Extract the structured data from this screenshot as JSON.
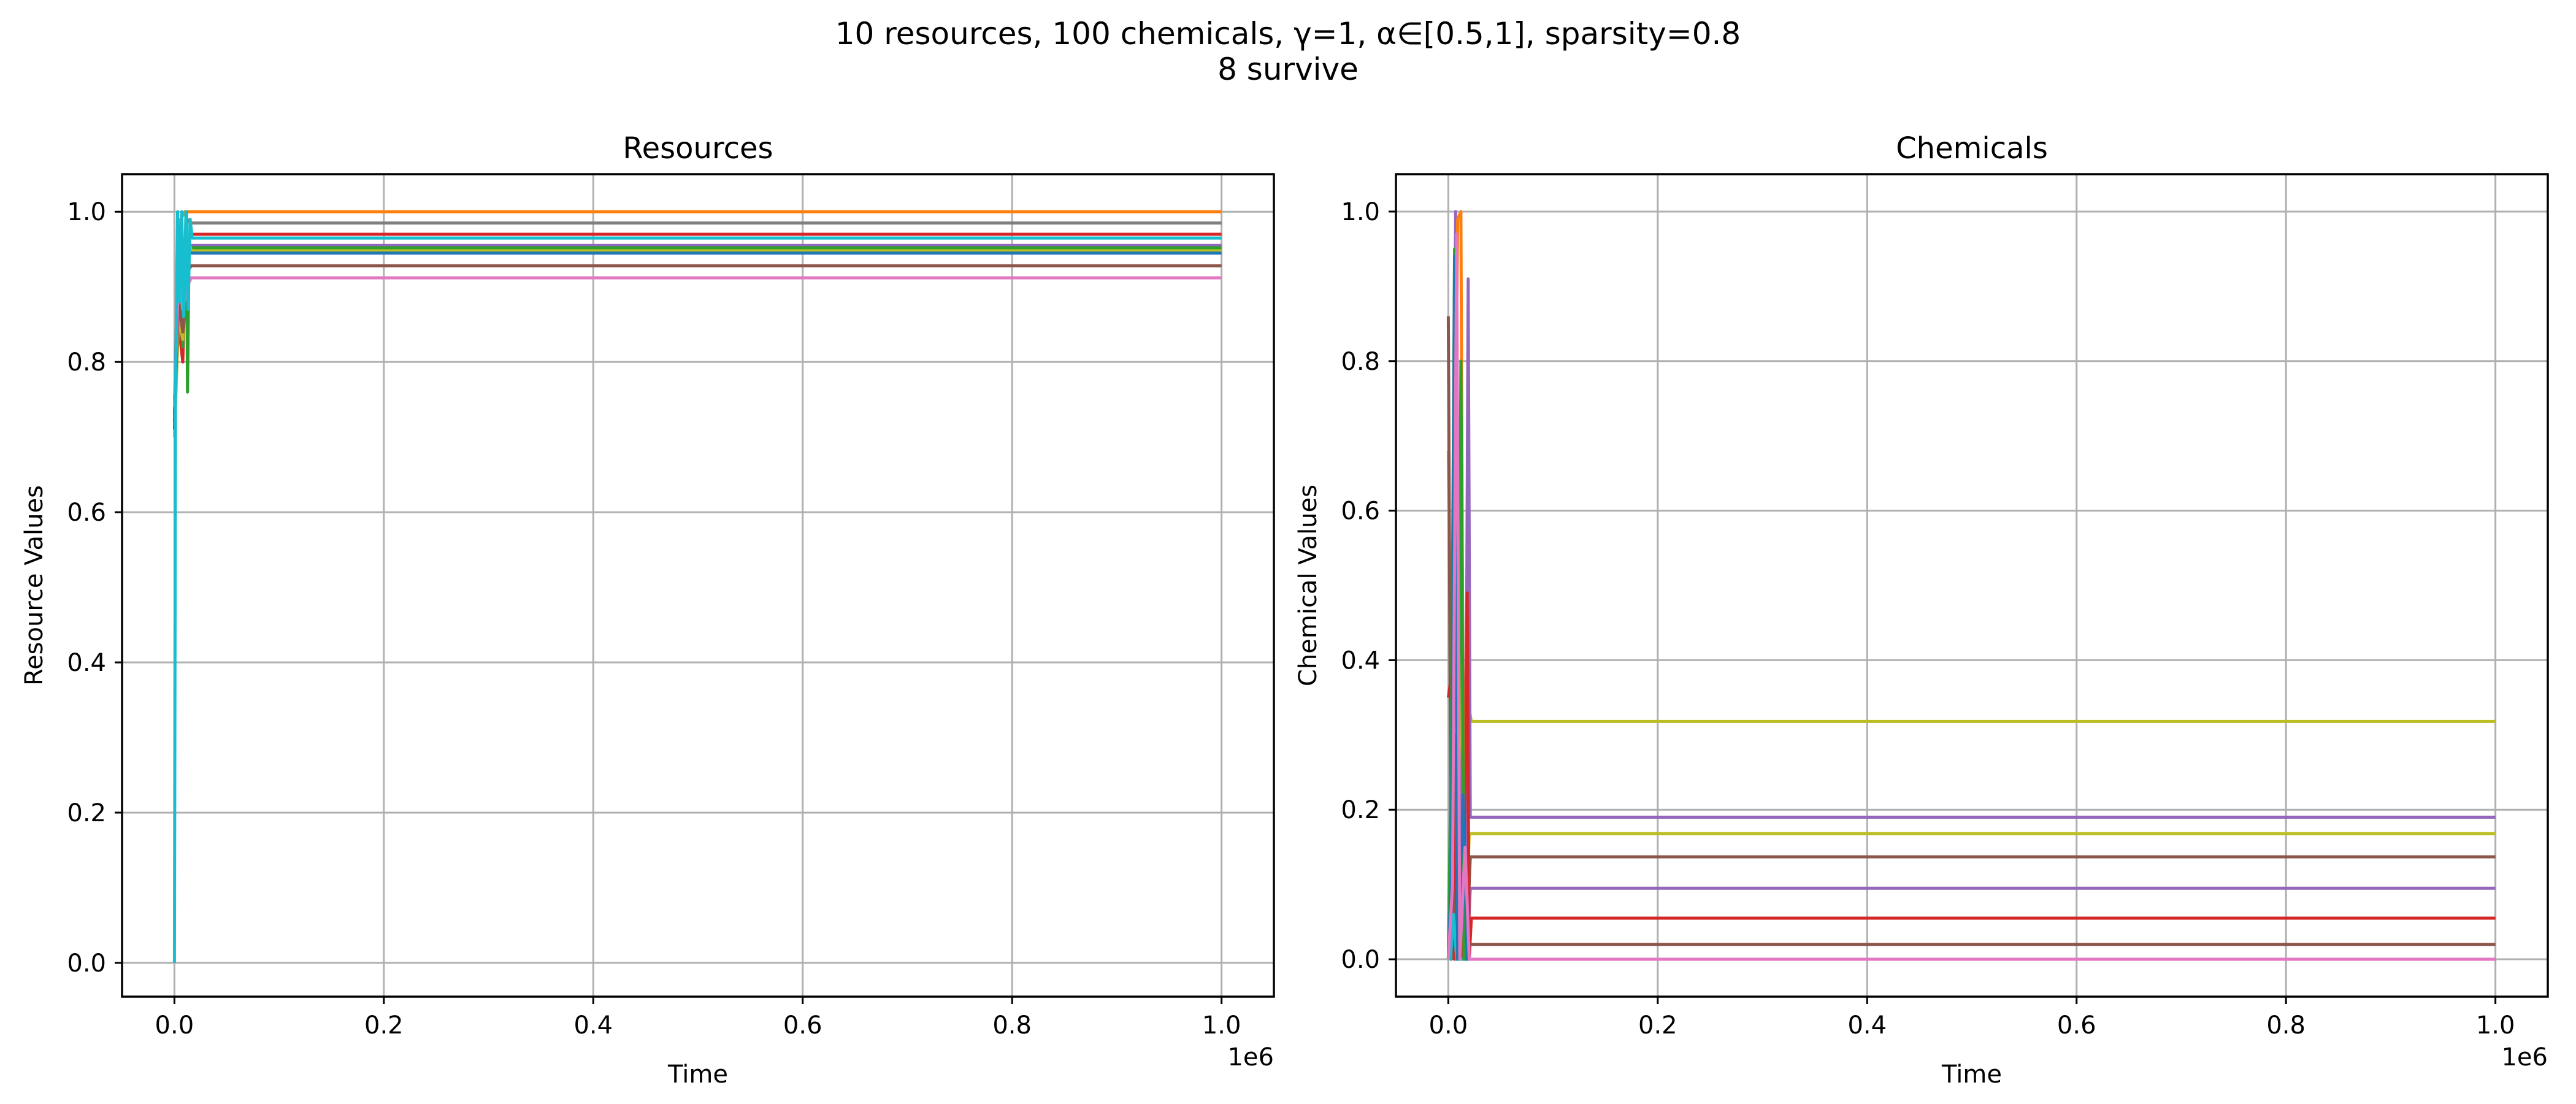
{
  "suptitle": {
    "line1": "10 resources, 100 chemicals, γ=1, α∈[0.5,1], sparsity=0.8",
    "line2": "8 survive"
  },
  "colors": [
    "#1f77b4",
    "#ff7f0e",
    "#2ca02c",
    "#d62728",
    "#9467bd",
    "#8c564b",
    "#e377c2",
    "#7f7f7f",
    "#bcbd22",
    "#17becf"
  ],
  "chart_data": [
    {
      "type": "line",
      "title": "Resources",
      "xlabel": "Time",
      "ylabel": "Resource Values",
      "x_offset_label": "1e6",
      "xlim": [
        -0.05,
        1.05
      ],
      "ylim": [
        -0.045,
        1.05
      ],
      "xticks": [
        0.0,
        0.2,
        0.4,
        0.6,
        0.8,
        1.0
      ],
      "xtick_labels": [
        "0.0",
        "0.2",
        "0.4",
        "0.6",
        "0.8",
        "1.0"
      ],
      "yticks": [
        0.0,
        0.2,
        0.4,
        0.6,
        0.8,
        1.0
      ],
      "ytick_labels": [
        "0.0",
        "0.2",
        "0.4",
        "0.6",
        "0.8",
        "1.0"
      ],
      "grid": true,
      "x_units": "1e6",
      "series": [
        {
          "color": "#ff7f0e",
          "final": 1.0,
          "transient": [
            [
              0,
              0.72
            ],
            [
              0.003,
              0.9
            ],
            [
              0.006,
              0.99
            ],
            [
              0.01,
              1.0
            ],
            [
              0.015,
              1.0
            ]
          ]
        },
        {
          "color": "#7f7f7f",
          "final": 0.985,
          "transient": [
            [
              0,
              0.74
            ],
            [
              0.004,
              0.98
            ],
            [
              0.008,
              0.88
            ],
            [
              0.012,
              0.99
            ],
            [
              0.016,
              0.985
            ]
          ]
        },
        {
          "color": "#d62728",
          "final": 0.97,
          "transient": [
            [
              0,
              0.75
            ],
            [
              0.004,
              0.85
            ],
            [
              0.008,
              0.8
            ],
            [
              0.011,
              0.95
            ],
            [
              0.016,
              0.97
            ]
          ]
        },
        {
          "color": "#9467bd",
          "final": 0.955,
          "transient": [
            [
              0,
              0.73
            ],
            [
              0.004,
              0.97
            ],
            [
              0.008,
              0.86
            ],
            [
              0.012,
              0.96
            ],
            [
              0.016,
              0.955
            ]
          ]
        },
        {
          "color": "#2ca02c",
          "final": 0.952,
          "transient": [
            [
              0,
              0.72
            ],
            [
              0.004,
              0.9
            ],
            [
              0.008,
              0.82
            ],
            [
              0.0115,
              1.0
            ],
            [
              0.0125,
              0.76
            ],
            [
              0.014,
              0.95
            ],
            [
              0.016,
              0.952
            ]
          ]
        },
        {
          "color": "#bcbd22",
          "final": 0.948,
          "transient": [
            [
              0,
              0.7
            ],
            [
              0.004,
              0.86
            ],
            [
              0.008,
              0.83
            ],
            [
              0.012,
              0.97
            ],
            [
              0.016,
              0.948
            ]
          ]
        },
        {
          "color": "#1f77b4",
          "final": 0.945,
          "transient": [
            [
              0,
              0.71
            ],
            [
              0.004,
              0.96
            ],
            [
              0.008,
              0.89
            ],
            [
              0.012,
              0.95
            ],
            [
              0.016,
              0.945
            ]
          ]
        },
        {
          "color": "#8c564b",
          "final": 0.928,
          "transient": [
            [
              0,
              0.73
            ],
            [
              0.004,
              0.88
            ],
            [
              0.008,
              0.84
            ],
            [
              0.012,
              0.92
            ],
            [
              0.016,
              0.928
            ]
          ]
        },
        {
          "color": "#e377c2",
          "final": 0.912,
          "transient": [
            [
              0,
              0.74
            ],
            [
              0.004,
              0.92
            ],
            [
              0.008,
              0.87
            ],
            [
              0.012,
              0.9
            ],
            [
              0.016,
              0.912
            ]
          ]
        },
        {
          "color": "#17becf",
          "final": 0.965,
          "transient": [
            [
              0,
              0.0
            ],
            [
              0.001,
              0.75
            ],
            [
              0.003,
              1.0
            ],
            [
              0.005,
              0.88
            ],
            [
              0.007,
              1.0
            ],
            [
              0.009,
              0.86
            ],
            [
              0.011,
              1.0
            ],
            [
              0.013,
              0.87
            ],
            [
              0.015,
              0.99
            ],
            [
              0.017,
              0.965
            ]
          ]
        }
      ]
    },
    {
      "type": "line",
      "title": "Chemicals",
      "xlabel": "Time",
      "ylabel": "Chemical Values",
      "x_offset_label": "1e6",
      "xlim": [
        -0.05,
        1.05
      ],
      "ylim": [
        -0.05,
        1.05
      ],
      "xticks": [
        0.0,
        0.2,
        0.4,
        0.6,
        0.8,
        1.0
      ],
      "xtick_labels": [
        "0.0",
        "0.2",
        "0.4",
        "0.6",
        "0.8",
        "1.0"
      ],
      "yticks": [
        0.0,
        0.2,
        0.4,
        0.6,
        0.8,
        1.0
      ],
      "ytick_labels": [
        "0.0",
        "0.2",
        "0.4",
        "0.6",
        "0.8",
        "1.0"
      ],
      "grid": true,
      "x_units": "1e6",
      "series": [
        {
          "color": "#bcbd22",
          "final": 0.318,
          "transient": [
            [
              0,
              0.68
            ],
            [
              0.003,
              0.3
            ],
            [
              0.006,
              0.0
            ],
            [
              0.01,
              0.42
            ],
            [
              0.014,
              0.0
            ],
            [
              0.018,
              0.35
            ],
            [
              0.022,
              0.318
            ]
          ]
        },
        {
          "color": "#9467bd",
          "final": 0.19,
          "transient": [
            [
              0,
              0.0
            ],
            [
              0.004,
              0.4
            ],
            [
              0.007,
              1.0
            ],
            [
              0.01,
              0.0
            ],
            [
              0.013,
              0.6
            ],
            [
              0.016,
              0.0
            ],
            [
              0.019,
              0.91
            ],
            [
              0.021,
              0.19
            ]
          ]
        },
        {
          "color": "#bcbd22",
          "final": 0.168,
          "transient": [
            [
              0,
              0.0
            ],
            [
              0.004,
              0.2
            ],
            [
              0.008,
              0.0
            ],
            [
              0.012,
              0.45
            ],
            [
              0.016,
              0.0
            ],
            [
              0.02,
              0.168
            ]
          ]
        },
        {
          "color": "#8c564b",
          "final": 0.137,
          "transient": [
            [
              0,
              0.86
            ],
            [
              0.003,
              0.0
            ],
            [
              0.006,
              0.3
            ],
            [
              0.009,
              0.0
            ],
            [
              0.013,
              0.2
            ],
            [
              0.017,
              0.0
            ],
            [
              0.021,
              0.137
            ]
          ]
        },
        {
          "color": "#9467bd",
          "final": 0.095,
          "transient": [
            [
              0,
              0.0
            ],
            [
              0.005,
              0.1
            ],
            [
              0.009,
              0.0
            ],
            [
              0.014,
              0.3
            ],
            [
              0.018,
              0.0
            ],
            [
              0.021,
              0.095
            ]
          ]
        },
        {
          "color": "#d62728",
          "final": 0.055,
          "transient": [
            [
              0,
              0.35
            ],
            [
              0.003,
              0.38
            ],
            [
              0.006,
              0.0
            ],
            [
              0.01,
              0.2
            ],
            [
              0.014,
              0.0
            ],
            [
              0.018,
              0.49
            ],
            [
              0.02,
              0.0
            ],
            [
              0.022,
              0.055
            ]
          ]
        },
        {
          "color": "#8c564b",
          "final": 0.02,
          "transient": [
            [
              0,
              0.0
            ],
            [
              0.004,
              0.1
            ],
            [
              0.008,
              0.0
            ],
            [
              0.012,
              0.15
            ],
            [
              0.016,
              0.0
            ],
            [
              0.02,
              0.02
            ]
          ]
        },
        {
          "color": "#17becf",
          "final": 0.0,
          "transient": [
            [
              0,
              0.01
            ],
            [
              0.002,
              0.0
            ],
            [
              0.005,
              0.06
            ],
            [
              0.008,
              0.0
            ],
            [
              0.012,
              0.0
            ]
          ]
        },
        {
          "color": "#ff7f0e",
          "final": 0.0,
          "transient": [
            [
              0,
              0.0
            ],
            [
              0.005,
              0.4
            ],
            [
              0.009,
              0.99
            ],
            [
              0.012,
              1.0
            ],
            [
              0.015,
              0.0
            ],
            [
              0.02,
              0.0
            ]
          ]
        },
        {
          "color": "#2ca02c",
          "final": 0.0,
          "transient": [
            [
              0,
              0.0
            ],
            [
              0.003,
              0.3
            ],
            [
              0.006,
              0.95
            ],
            [
              0.009,
              0.0
            ],
            [
              0.012,
              0.8
            ],
            [
              0.015,
              0.0
            ]
          ]
        },
        {
          "color": "#1f77b4",
          "final": 0.0,
          "transient": [
            [
              0,
              0.0
            ],
            [
              0.003,
              0.12
            ],
            [
              0.006,
              0.94
            ],
            [
              0.009,
              0.0
            ],
            [
              0.014,
              0.22
            ],
            [
              0.018,
              0.0
            ]
          ]
        },
        {
          "color": "#e377c2",
          "final": 0.0,
          "transient": [
            [
              0,
              0.0
            ],
            [
              0.004,
              0.1
            ],
            [
              0.008,
              0.97
            ],
            [
              0.011,
              0.0
            ],
            [
              0.016,
              0.15
            ],
            [
              0.02,
              0.0
            ]
          ]
        }
      ]
    }
  ]
}
